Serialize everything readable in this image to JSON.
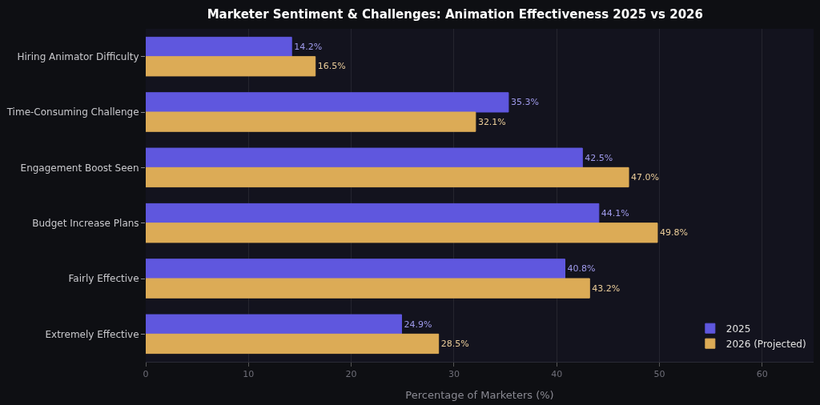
{
  "chart_data": {
    "type": "bar",
    "orientation": "horizontal",
    "title": "Marketer Sentiment & Challenges: Animation Effectiveness 2025 vs 2026",
    "xlabel": "Percentage of Marketers (%)",
    "categories": [
      "Hiring Animator Difficulty",
      "Time-Consuming Challenge",
      "Engagement Boost Seen",
      "Budget Increase Plans",
      "Fairly Effective",
      "Extremely Effective"
    ],
    "series": [
      {
        "name": "2025",
        "color": "#5f57de",
        "values": [
          14.2,
          35.3,
          42.5,
          44.1,
          40.8,
          24.9
        ],
        "value_labels": [
          "14.2%",
          "35.3%",
          "42.5%",
          "44.1%",
          "40.8%",
          "24.9%"
        ]
      },
      {
        "name": "2026 (Projected)",
        "color": "#dcab56",
        "values": [
          16.5,
          32.1,
          47.0,
          49.8,
          43.2,
          28.5
        ],
        "value_labels": [
          "16.5%",
          "32.1%",
          "47.0%",
          "49.8%",
          "43.2%",
          "28.5%"
        ]
      }
    ],
    "xlim": [
      0,
      65
    ],
    "xticks": [
      0,
      10,
      20,
      30,
      40,
      50,
      60
    ],
    "grid": "x",
    "legend": "bottom right"
  }
}
